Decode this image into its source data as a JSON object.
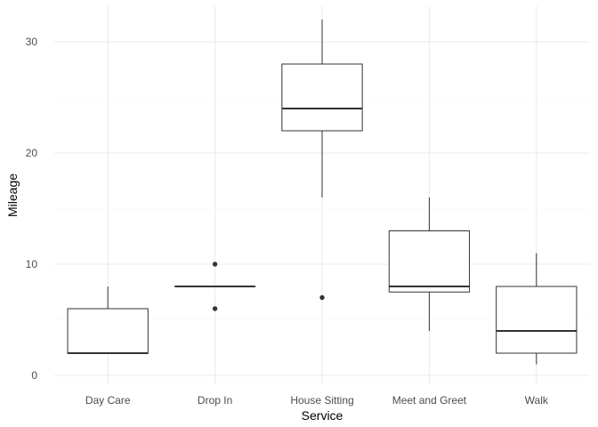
{
  "chart_data": {
    "type": "boxplot",
    "title": "",
    "xlabel": "Service",
    "ylabel": "Mileage",
    "ylim": [
      -0.8,
      33.2
    ],
    "yticks": [
      0,
      10,
      20,
      30
    ],
    "grid": true,
    "legend": "none",
    "categories": [
      "Day Care",
      "Drop In",
      "House Sitting",
      "Meet and Greet",
      "Walk"
    ],
    "boxes": [
      {
        "category": "Day Care",
        "whisker_low": 2,
        "q1": 2,
        "median": 2,
        "q3": 6,
        "whisker_high": 8,
        "outliers": []
      },
      {
        "category": "Drop In",
        "whisker_low": 8,
        "q1": 8,
        "median": 8,
        "q3": 8,
        "whisker_high": 8,
        "outliers": [
          6,
          10
        ]
      },
      {
        "category": "House Sitting",
        "whisker_low": 16,
        "q1": 22,
        "median": 24,
        "q3": 28,
        "whisker_high": 32,
        "outliers": [
          7
        ]
      },
      {
        "category": "Meet and Greet",
        "whisker_low": 4,
        "q1": 7.5,
        "median": 8,
        "q3": 13,
        "whisker_high": 16,
        "outliers": []
      },
      {
        "category": "Walk",
        "whisker_low": 1,
        "q1": 2,
        "median": 4,
        "q3": 8,
        "whisker_high": 11,
        "outliers": []
      }
    ],
    "colors": {
      "box_line": "#333333",
      "grid_major": "#ebebeb",
      "grid_minor": "#f5f5f5",
      "background": "#ffffff"
    }
  }
}
